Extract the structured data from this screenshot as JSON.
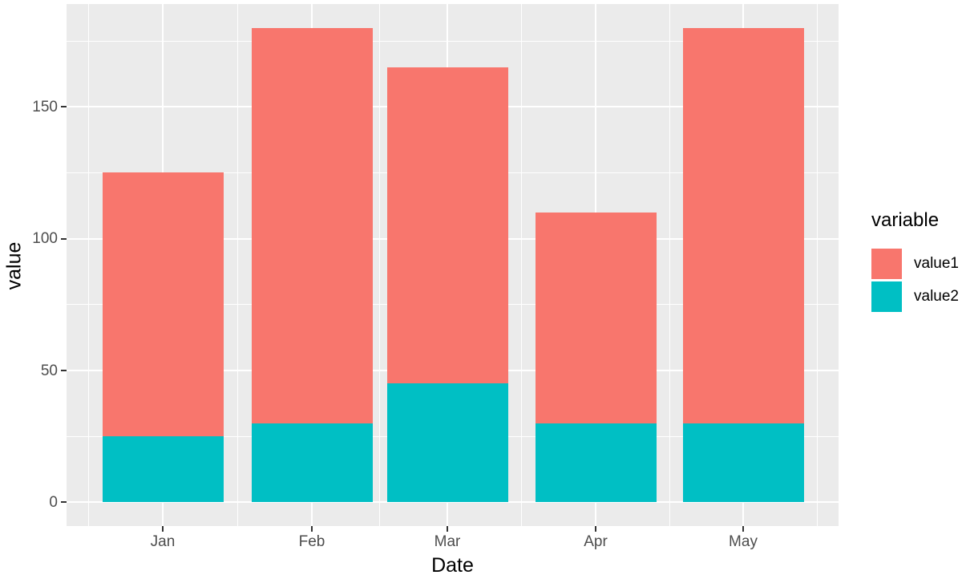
{
  "chart_data": {
    "type": "bar",
    "stacked": true,
    "title": "",
    "xlabel": "Date",
    "ylabel": "value",
    "categories": [
      "Jan",
      "Feb",
      "Mar",
      "Apr",
      "May"
    ],
    "series": [
      {
        "name": "value1",
        "color": "#F8766D",
        "values": [
          100,
          150,
          120,
          80,
          150
        ]
      },
      {
        "name": "value2",
        "color": "#00BFC4",
        "values": [
          25,
          30,
          45,
          30,
          30
        ]
      }
    ],
    "stack_bottom_to_top": [
      "value2",
      "value1"
    ],
    "totals": [
      125,
      180,
      165,
      110,
      180
    ],
    "y_major_ticks": [
      0,
      50,
      100,
      150
    ],
    "y_minor_ticks": [
      25,
      75,
      125,
      175
    ],
    "ylim": [
      -9,
      189
    ],
    "grid": true,
    "legend_title": "variable",
    "legend_position": "right",
    "colors": {
      "panel_background": "#EBEBEB",
      "grid": "#FFFFFF",
      "axis_text": "#4D4D4D",
      "axis_title": "#000000",
      "tick_marks": "#333333",
      "figure_background": "#FFFFFF"
    }
  }
}
